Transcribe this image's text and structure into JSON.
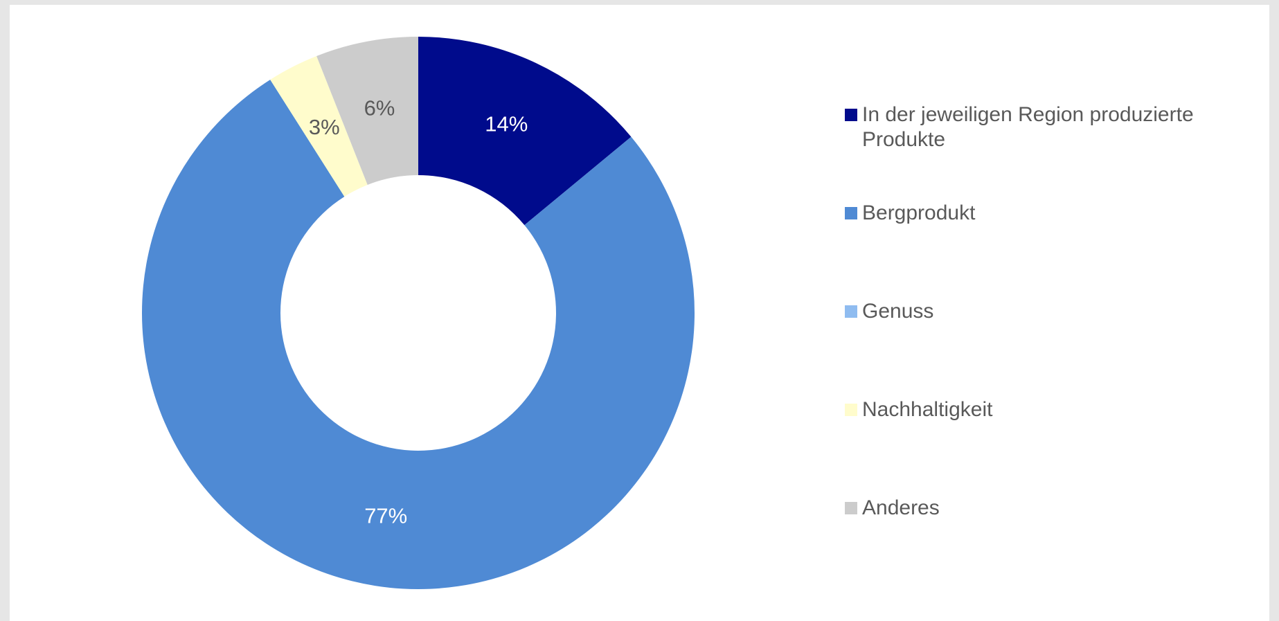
{
  "chart_data": {
    "type": "donut",
    "categories": [
      "In der jeweiligen Region produzierte Produkte",
      "Bergprodukt",
      "Genuss",
      "Nachhaltigkeit",
      "Anderes"
    ],
    "values": [
      14,
      77,
      0,
      3,
      6
    ],
    "value_labels": [
      "14%",
      "77%",
      null,
      "3%",
      "6%"
    ],
    "colors": [
      "#000b8c",
      "#4f8ad4",
      "#8fbcf0",
      "#fffccc",
      "#cccccc"
    ],
    "legend": "right"
  }
}
